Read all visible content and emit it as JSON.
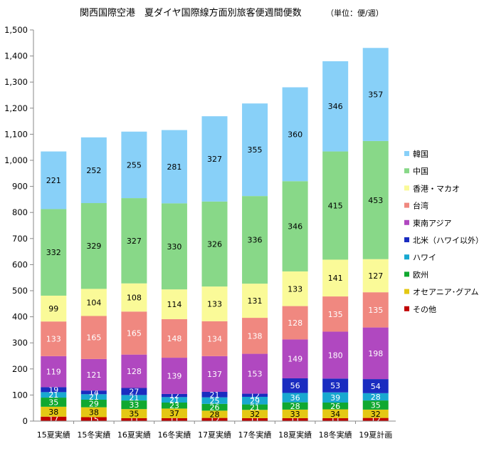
{
  "chart_data": {
    "type": "bar",
    "stacked": true,
    "title": "関西国際空港　夏ダイヤ国際線方面別旅客便週間便数",
    "unit": "（単位：便/週）",
    "xlabel": "",
    "ylabel": "",
    "ylim": [
      0,
      1500
    ],
    "yticks": [
      "0",
      "100",
      "200",
      "300",
      "400",
      "500",
      "600",
      "700",
      "800",
      "900",
      "1,000",
      "1,100",
      "1,200",
      "1,300",
      "1,400",
      "1,500"
    ],
    "grid": false,
    "legend_position": "right",
    "categories": [
      "15夏実績",
      "15冬実績",
      "16夏実績",
      "16冬実績",
      "17夏実績",
      "17冬実績",
      "18夏実績",
      "18冬実績",
      "19夏計画"
    ],
    "series": [
      {
        "name": "その他",
        "color": "#c00000",
        "label_color": "#ffffff",
        "values": [
          17,
          15,
          11,
          11,
          12,
          11,
          11,
          11,
          12
        ]
      },
      {
        "name": "オセアニア･グアム",
        "color": "#e4c814",
        "label_color": "#000000",
        "values": [
          38,
          38,
          35,
          37,
          28,
          32,
          33,
          34,
          32
        ]
      },
      {
        "name": "欧州",
        "color": "#10a830",
        "label_color": "#ffffff",
        "values": [
          35,
          29,
          33,
          23,
          26,
          21,
          28,
          26,
          35
        ]
      },
      {
        "name": "ハワイ",
        "color": "#18a8d0",
        "label_color": "#ffffff",
        "values": [
          21,
          21,
          21,
          21,
          25,
          29,
          36,
          39,
          28
        ]
      },
      {
        "name": "北米（ハワイ以外）",
        "color": "#1a2cc0",
        "label_color": "#ffffff",
        "values": [
          19,
          14,
          27,
          12,
          21,
          12,
          56,
          53,
          54
        ]
      },
      {
        "name": "東南アジア",
        "color": "#b048c0",
        "label_color": "#ffffff",
        "values": [
          119,
          121,
          128,
          139,
          137,
          153,
          149,
          180,
          198
        ]
      },
      {
        "name": "台湾",
        "color": "#f08880",
        "label_color": "#ffffff",
        "values": [
          133,
          165,
          165,
          148,
          134,
          138,
          128,
          135,
          135
        ]
      },
      {
        "name": "香港・マカオ",
        "color": "#fafa98",
        "label_color": "#000000",
        "values": [
          99,
          104,
          108,
          114,
          133,
          131,
          133,
          141,
          127
        ]
      },
      {
        "name": "中国",
        "color": "#88d888",
        "label_color": "#000000",
        "values": [
          332,
          329,
          327,
          330,
          326,
          336,
          346,
          415,
          453
        ]
      },
      {
        "name": "韓国",
        "color": "#88d0f8",
        "label_color": "#000000",
        "values": [
          221,
          252,
          255,
          281,
          327,
          355,
          360,
          346,
          357
        ]
      }
    ],
    "legend_order": [
      "韓国",
      "中国",
      "香港・マカオ",
      "台湾",
      "東南アジア",
      "北米（ハワイ以外）",
      "ハワイ",
      "欧州",
      "オセアニア･グアム",
      "その他"
    ]
  }
}
